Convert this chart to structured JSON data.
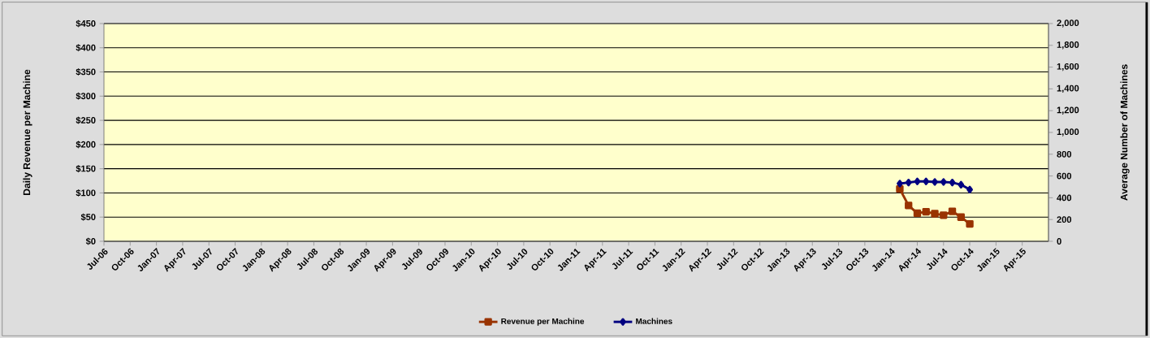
{
  "chart_data": {
    "type": "line",
    "xlabel": null,
    "ylabel": "Daily Revenue per Machine",
    "y2label": "Average Number of Machines",
    "x": [
      "2014-02",
      "2014-03",
      "2014-04",
      "2014-05",
      "2014-06",
      "2014-07",
      "2014-08",
      "2014-09",
      "2014-10"
    ],
    "series": [
      {
        "name": "Revenue per Machine",
        "color": "#993300",
        "marker": "square",
        "values": [
          108,
          74,
          58,
          61,
          57,
          54,
          62,
          50,
          36
        ]
      },
      {
        "name": "Machines",
        "color": "#000080",
        "marker": "diamond",
        "axis": "y2",
        "values": [
          530,
          540,
          550,
          550,
          545,
          545,
          540,
          520,
          475
        ]
      }
    ],
    "xlim": [
      "2006-07",
      "2015-07"
    ],
    "xticks": [
      {
        "value": "2006-07",
        "label": "Jul-06"
      },
      {
        "value": "2006-10",
        "label": "Oct-06"
      },
      {
        "value": "2007-01",
        "label": "Jan-07"
      },
      {
        "value": "2007-04",
        "label": "Apr-07"
      },
      {
        "value": "2007-07",
        "label": "Jul-07"
      },
      {
        "value": "2007-10",
        "label": "Oct-07"
      },
      {
        "value": "2008-01",
        "label": "Jan-08"
      },
      {
        "value": "2008-04",
        "label": "Apr-08"
      },
      {
        "value": "2008-07",
        "label": "Jul-08"
      },
      {
        "value": "2008-10",
        "label": "Oct-08"
      },
      {
        "value": "2009-01",
        "label": "Jan-09"
      },
      {
        "value": "2009-04",
        "label": "Apr-09"
      },
      {
        "value": "2009-07",
        "label": "Jul-09"
      },
      {
        "value": "2009-10",
        "label": "Oct-09"
      },
      {
        "value": "2010-01",
        "label": "Jan-10"
      },
      {
        "value": "2010-04",
        "label": "Apr-10"
      },
      {
        "value": "2010-07",
        "label": "Jul-10"
      },
      {
        "value": "2010-10",
        "label": "Oct-10"
      },
      {
        "value": "2011-01",
        "label": "Jan-11"
      },
      {
        "value": "2011-04",
        "label": "Apr-11"
      },
      {
        "value": "2011-07",
        "label": "Jul-11"
      },
      {
        "value": "2011-10",
        "label": "Oct-11"
      },
      {
        "value": "2012-01",
        "label": "Jan-12"
      },
      {
        "value": "2012-04",
        "label": "Apr-12"
      },
      {
        "value": "2012-07",
        "label": "Jul-12"
      },
      {
        "value": "2012-10",
        "label": "Oct-12"
      },
      {
        "value": "2013-01",
        "label": "Jan-13"
      },
      {
        "value": "2013-04",
        "label": "Apr-13"
      },
      {
        "value": "2013-07",
        "label": "Jul-13"
      },
      {
        "value": "2013-10",
        "label": "Oct-13"
      },
      {
        "value": "2014-01",
        "label": "Jan-14"
      },
      {
        "value": "2014-04",
        "label": "Apr-14"
      },
      {
        "value": "2014-07",
        "label": "Jul-14"
      },
      {
        "value": "2014-10",
        "label": "Oct-14"
      },
      {
        "value": "2015-01",
        "label": "Jan-15"
      },
      {
        "value": "2015-04",
        "label": "Apr-15"
      }
    ],
    "ylim": [
      0,
      450
    ],
    "yticks": [
      {
        "value": 0,
        "label": "$0"
      },
      {
        "value": 50,
        "label": "$50"
      },
      {
        "value": 100,
        "label": "$100"
      },
      {
        "value": 150,
        "label": "$150"
      },
      {
        "value": 200,
        "label": "$200"
      },
      {
        "value": 250,
        "label": "$250"
      },
      {
        "value": 300,
        "label": "$300"
      },
      {
        "value": 350,
        "label": "$350"
      },
      {
        "value": 400,
        "label": "$400"
      },
      {
        "value": 450,
        "label": "$450"
      }
    ],
    "y2lim": [
      0,
      2000
    ],
    "y2ticks": [
      0,
      200,
      400,
      600,
      800,
      {
        "value": 1000,
        "label": "1,000"
      },
      {
        "value": 1200,
        "label": "1,200"
      },
      {
        "value": 1400,
        "label": "1,400"
      },
      {
        "value": 1600,
        "label": "1,600"
      },
      {
        "value": 1800,
        "label": "1,800"
      },
      {
        "value": 2000,
        "label": "2,000"
      }
    ],
    "grid": "y",
    "legend": "bottom",
    "line_style": "solid"
  }
}
